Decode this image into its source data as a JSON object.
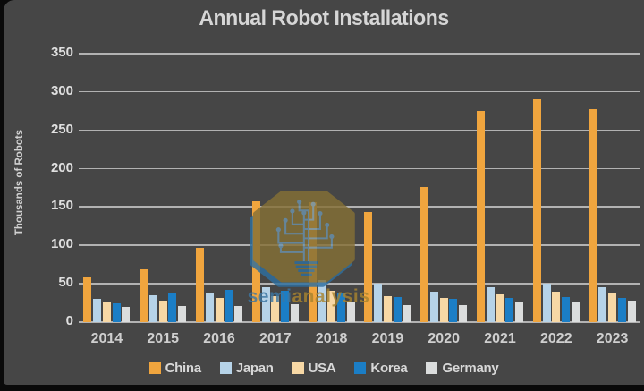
{
  "chart_data": {
    "type": "bar",
    "title": "Annual Robot Installations",
    "ylabel": "Thousands of Robots",
    "xlabel": "",
    "categories": [
      "2014",
      "2015",
      "2016",
      "2017",
      "2018",
      "2019",
      "2020",
      "2021",
      "2022",
      "2023"
    ],
    "series": [
      {
        "name": "China",
        "color": "#f0a53e",
        "values": [
          58,
          69,
          97,
          158,
          156,
          144,
          176,
          275,
          290,
          278
        ]
      },
      {
        "name": "Japan",
        "color": "#b6d3e8",
        "values": [
          30,
          35,
          39,
          46,
          55,
          50,
          40,
          46,
          50,
          46
        ]
      },
      {
        "name": "USA",
        "color": "#f7d8a5",
        "values": [
          26,
          28,
          31,
          34,
          41,
          34,
          31,
          36,
          40,
          38
        ]
      },
      {
        "name": "Korea",
        "color": "#1b7ec6",
        "values": [
          25,
          38,
          42,
          41,
          38,
          33,
          30,
          31,
          33,
          32
        ]
      },
      {
        "name": "Germany",
        "color": "#dbdddd",
        "values": [
          20,
          21,
          21,
          23,
          27,
          22,
          22,
          26,
          27,
          28
        ]
      }
    ],
    "ylim": [
      0,
      350
    ],
    "ytick_step": 50,
    "grid": true,
    "legend_position": "bottom"
  },
  "watermark": {
    "text_semi": "semi",
    "text_analysis": "analysis"
  },
  "colors": {
    "background": "#464646",
    "frame": "#0a0a0a",
    "gridline": "#c6c6c6",
    "title_text": "#d6d6d6"
  }
}
